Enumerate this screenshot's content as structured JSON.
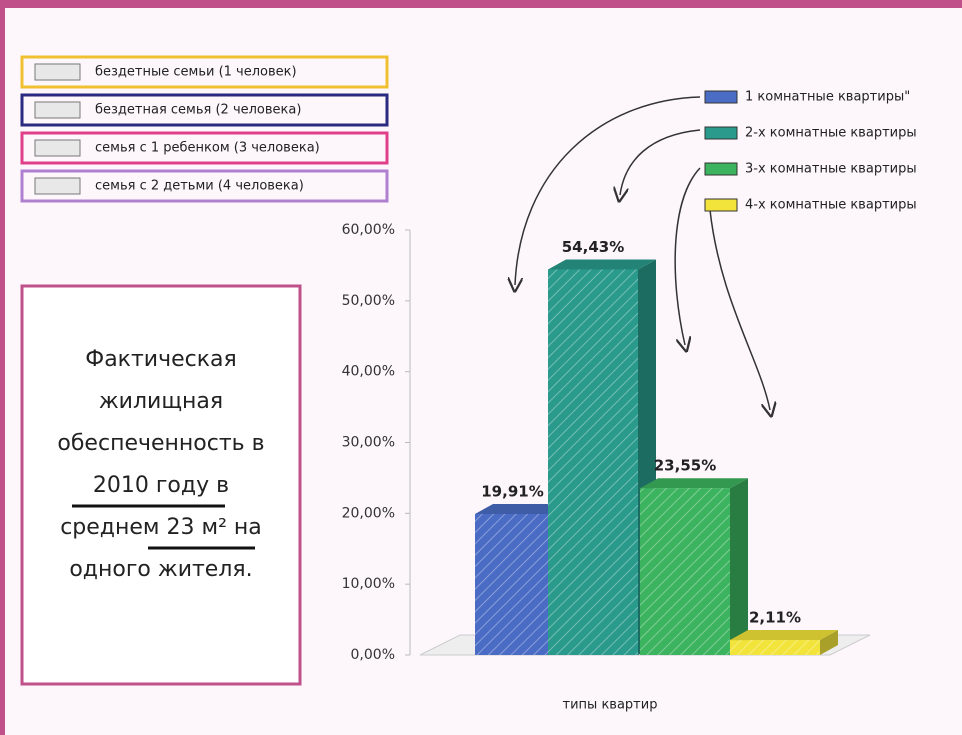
{
  "chart_data": {
    "type": "bar",
    "categories": [
      "1 комнатные квартиры\"",
      "2-х комнатные квартиры",
      "3-х комнатные квартиры",
      "4-х комнатные квартиры"
    ],
    "values": [
      19.91,
      54.43,
      23.55,
      2.11
    ],
    "value_labels": [
      "19,91%",
      "54,43%",
      "23,55%",
      "2,11%"
    ],
    "colors": [
      "#4a6cc4",
      "#2a9a8c",
      "#3cb35e",
      "#f2e43a"
    ],
    "ylim": [
      0,
      60
    ],
    "yticks": [
      {
        "value": 0,
        "label": "0,00%"
      },
      {
        "value": 10,
        "label": "10,00%"
      },
      {
        "value": 20,
        "label": "20,00%"
      },
      {
        "value": 30,
        "label": "30,00%"
      },
      {
        "value": 40,
        "label": "40,00%"
      },
      {
        "value": 50,
        "label": "50,00%"
      },
      {
        "value": 60,
        "label": "60,00%"
      }
    ],
    "xlabel": "типы квартир",
    "family_legend": [
      "бездетные семьи (1 человек)",
      "бездетная семья (2 человека)",
      "семья с 1 ребенком (3 человека)",
      "семья с 2 детьми (4 человека)"
    ],
    "family_colors": [
      "#f0c030",
      "#2a2a80",
      "#e0408a",
      "#b080d0"
    ],
    "note_lines": [
      "Фактическая",
      "жилищная",
      "обеспеченность в",
      "2010 году  в",
      "среднем 23 м² на",
      "одного жителя."
    ]
  }
}
